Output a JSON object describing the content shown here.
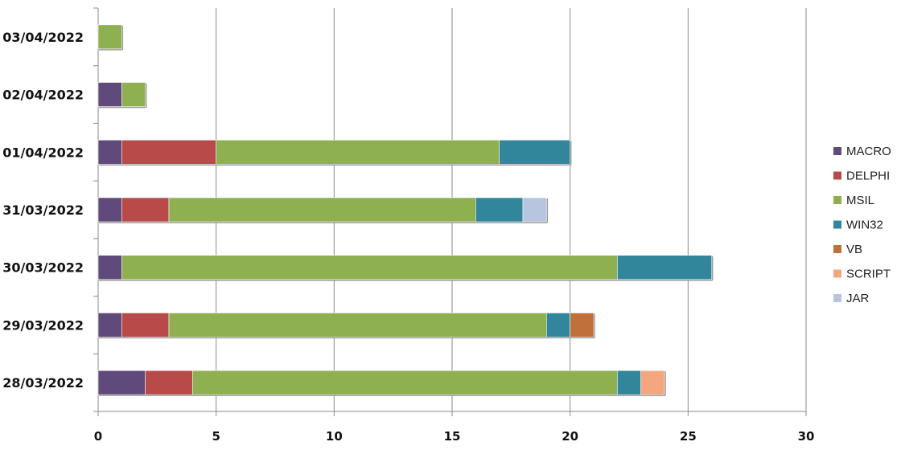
{
  "chart_data": {
    "type": "bar",
    "orientation": "horizontal",
    "stacked": true,
    "categories": [
      "28/03/2022",
      "29/03/2022",
      "30/03/2022",
      "31/03/2022",
      "01/04/2022",
      "02/04/2022",
      "03/04/2022"
    ],
    "series": [
      {
        "name": "MACRO",
        "color": "#604A7B",
        "values": [
          2,
          1,
          1,
          1,
          1,
          1,
          0
        ]
      },
      {
        "name": "DELPHI",
        "color": "#B84A4A",
        "values": [
          2,
          2,
          0,
          2,
          4,
          0,
          0
        ]
      },
      {
        "name": "MSIL",
        "color": "#8EB050",
        "values": [
          18,
          16,
          21,
          13,
          12,
          1,
          1
        ]
      },
      {
        "name": "WIN32",
        "color": "#31869B",
        "values": [
          1,
          1,
          4,
          2,
          3,
          0,
          0
        ]
      },
      {
        "name": "VB",
        "color": "#C0703A",
        "values": [
          0,
          1,
          0,
          0,
          0,
          0,
          0
        ]
      },
      {
        "name": "SCRIPT",
        "color": "#F4A77E",
        "values": [
          1,
          0,
          0,
          0,
          0,
          0,
          0
        ]
      },
      {
        "name": "JAR",
        "color": "#B7C5DE",
        "values": [
          0,
          0,
          0,
          1,
          0,
          0,
          0
        ]
      }
    ],
    "xlim": [
      0,
      30
    ],
    "xticks": [
      0,
      5,
      10,
      15,
      20,
      25,
      30
    ],
    "xtick_labels": [
      "0",
      "5",
      "10",
      "15",
      "20",
      "25",
      "30"
    ],
    "grid": "vertical",
    "legend": "right",
    "title": "",
    "xlabel": "",
    "ylabel": ""
  }
}
